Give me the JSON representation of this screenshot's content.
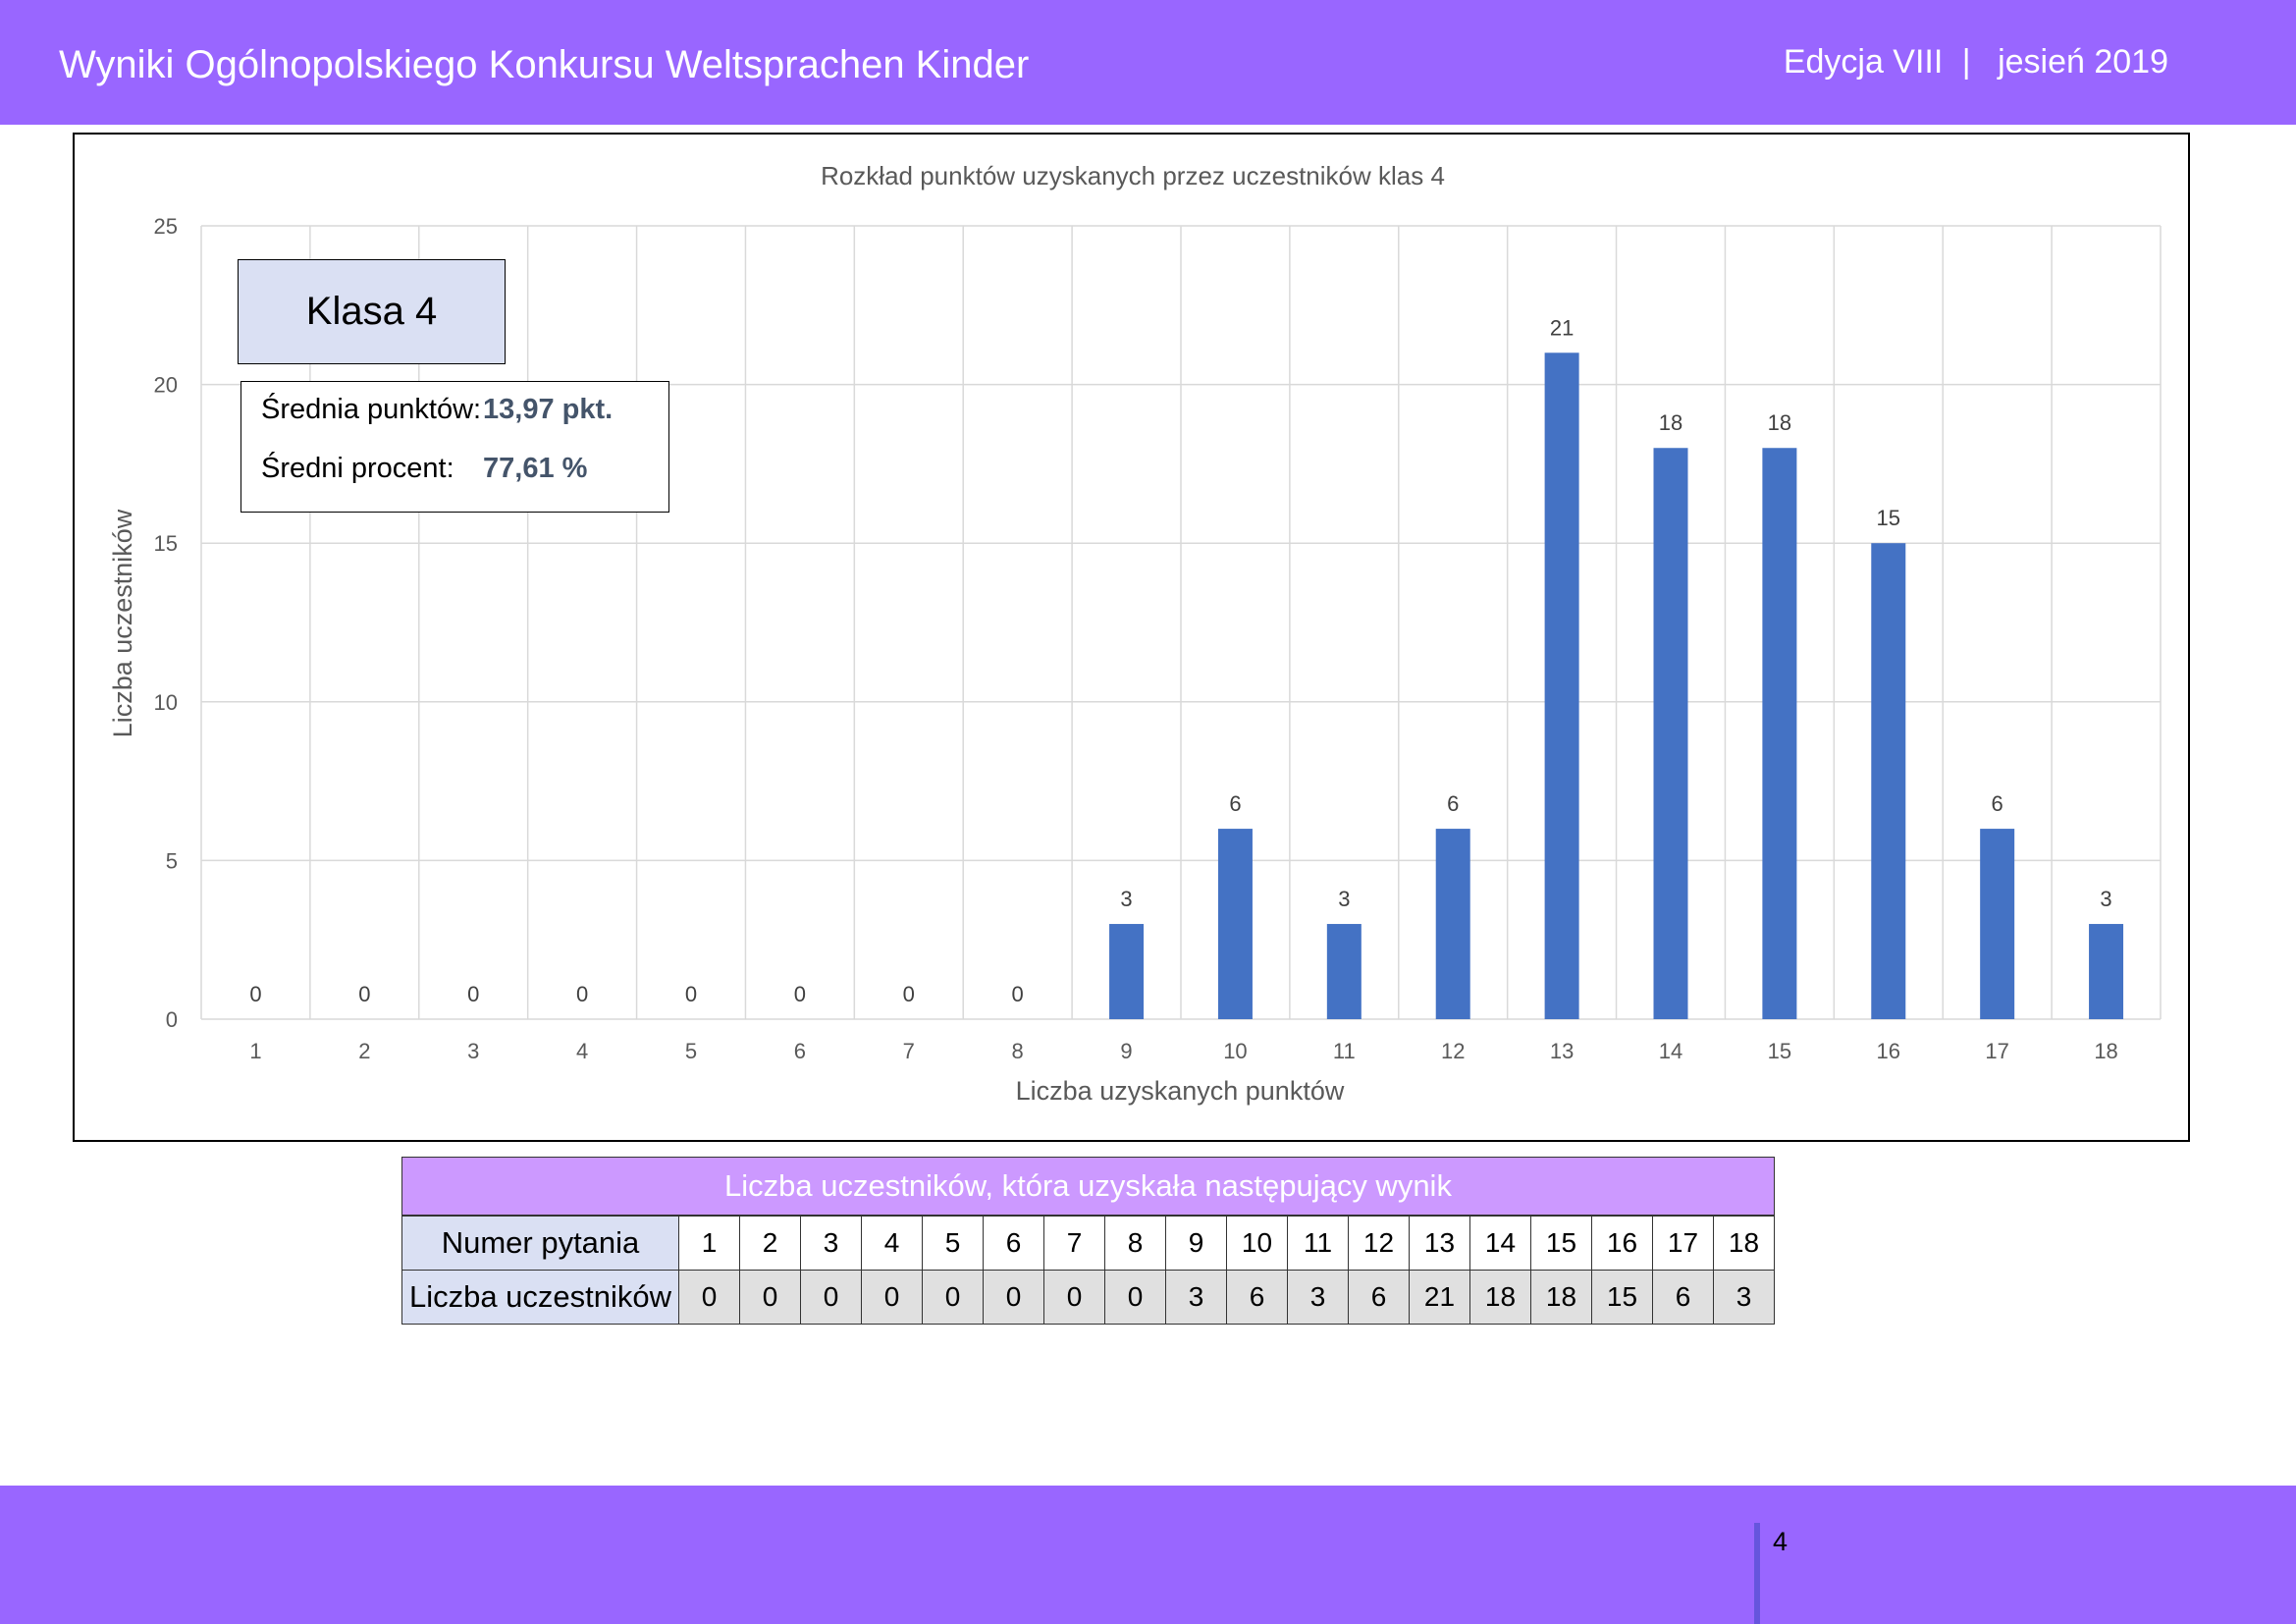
{
  "header": {
    "title": "Wyniki Ogólnopolskiego Konkursu Weltsprachen Kinder",
    "edition": "Edycja VIII",
    "separator": "|",
    "season": "jesień 2019"
  },
  "chart_data": {
    "type": "bar",
    "title": "Rozkład punktów uzyskanych przez uczestników klas 4",
    "xlabel": "Liczba uzyskanych punktów",
    "ylabel": "Liczba uczestników",
    "categories": [
      "1",
      "2",
      "3",
      "4",
      "5",
      "6",
      "7",
      "8",
      "9",
      "10",
      "11",
      "12",
      "13",
      "14",
      "15",
      "16",
      "17",
      "18"
    ],
    "values": [
      0,
      0,
      0,
      0,
      0,
      0,
      0,
      0,
      3,
      6,
      3,
      6,
      21,
      18,
      18,
      15,
      6,
      3
    ],
    "ylim": [
      0,
      25
    ],
    "yticks": [
      0,
      5,
      10,
      15,
      20,
      25
    ],
    "grid": true,
    "data_labels": true,
    "bar_color": "#4472c4"
  },
  "klasa_label": "Klasa 4",
  "stats": {
    "avg_points_label": "Średnia punktów:",
    "avg_points_value": "13,97 pkt.",
    "avg_percent_label": "Średni procent:",
    "avg_percent_value": "77,61 %"
  },
  "table": {
    "title": "Liczba uczestników, która uzyskała następujący wynik",
    "row1_header": "Numer pytania",
    "row2_header": "Liczba uczestników",
    "questions": [
      "1",
      "2",
      "3",
      "4",
      "5",
      "6",
      "7",
      "8",
      "9",
      "10",
      "11",
      "12",
      "13",
      "14",
      "15",
      "16",
      "17",
      "18"
    ],
    "counts": [
      "0",
      "0",
      "0",
      "0",
      "0",
      "0",
      "0",
      "0",
      "3",
      "6",
      "3",
      "6",
      "21",
      "18",
      "18",
      "15",
      "6",
      "3"
    ]
  },
  "footer": {
    "page_number": "4"
  },
  "colors": {
    "header_bg": "#9966ff",
    "table_title_bg": "#cc99ff",
    "row_header_bg": "#dae0f3",
    "stat_value": "#44546a"
  }
}
